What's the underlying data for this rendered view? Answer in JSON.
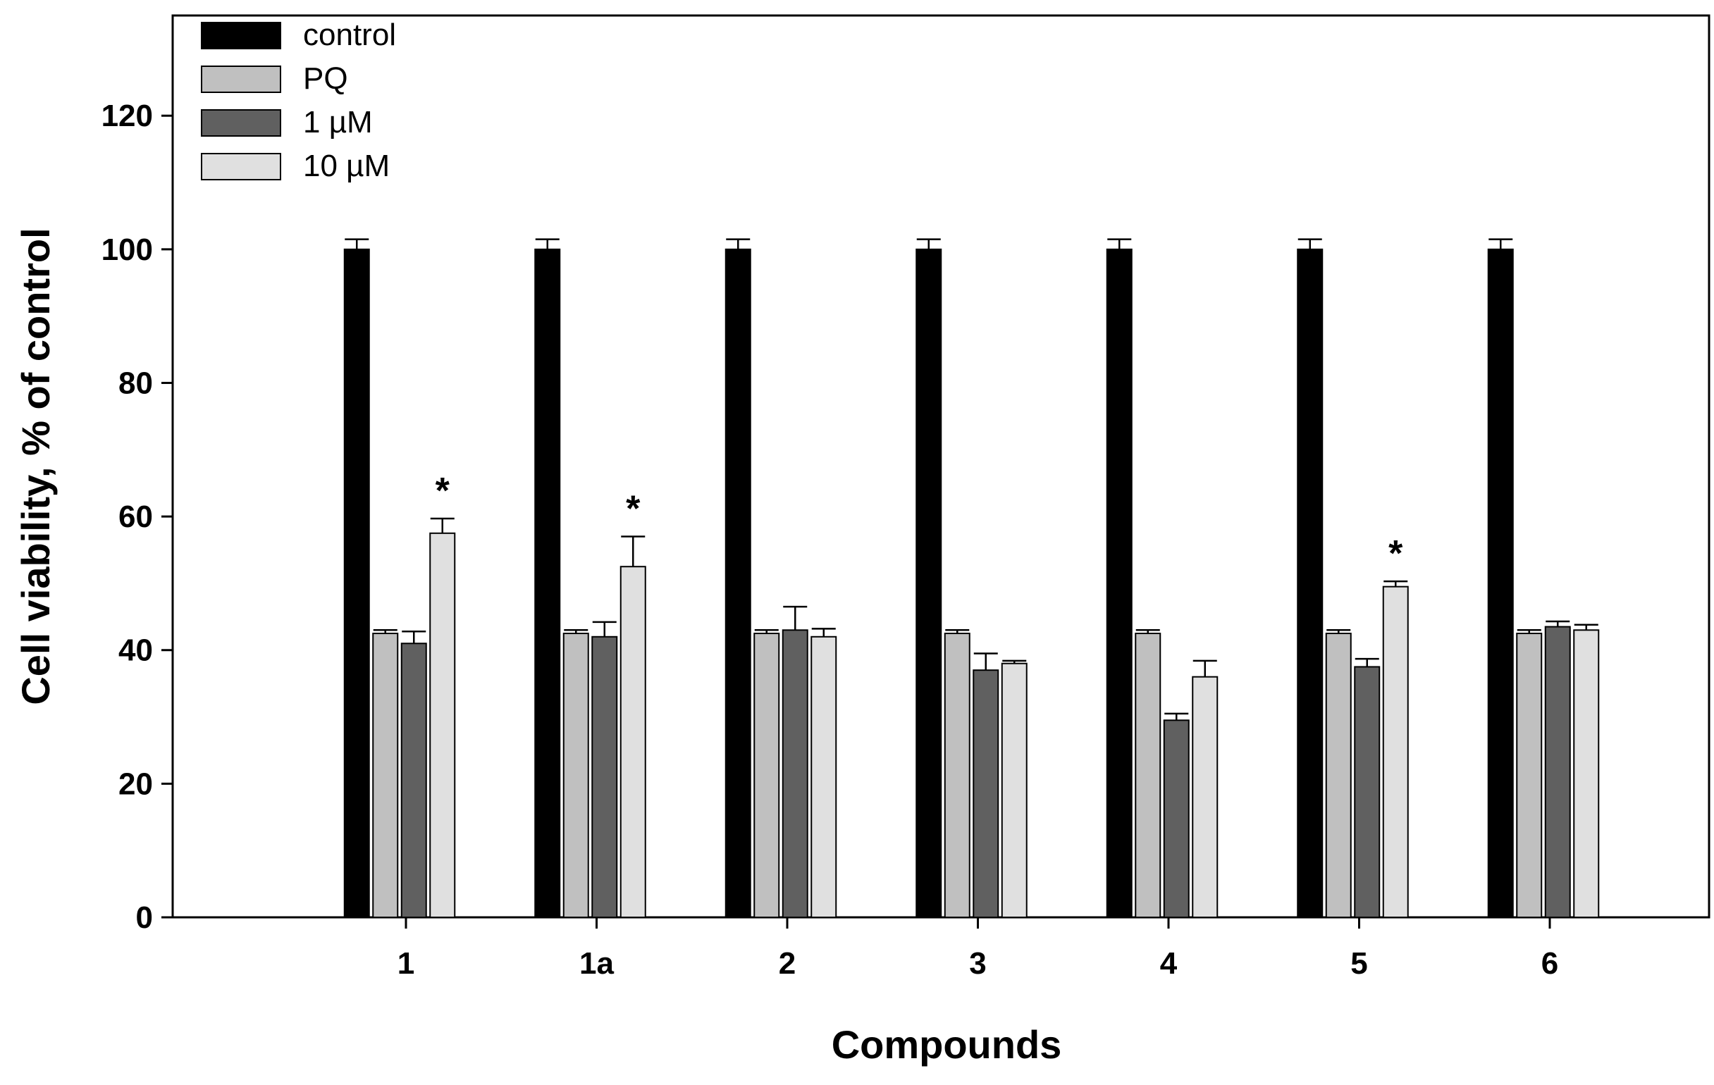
{
  "chart_data": {
    "type": "bar",
    "title": "",
    "xlabel": "Compounds",
    "ylabel": "Cell viability, % of control",
    "categories": [
      "1",
      "1a",
      "2",
      "3",
      "4",
      "5",
      "6"
    ],
    "ylim": [
      0,
      135
    ],
    "yticks": [
      0,
      20,
      40,
      60,
      80,
      100,
      120
    ],
    "legend_position": "top-left",
    "series": [
      {
        "name": "control",
        "color": "#000000",
        "values": [
          100,
          100,
          100,
          100,
          100,
          100,
          100
        ],
        "errors": [
          1.5,
          1.5,
          1.5,
          1.5,
          1.5,
          1.5,
          1.5
        ]
      },
      {
        "name": "PQ",
        "color": "#c0c0c0",
        "values": [
          42.5,
          42.5,
          42.5,
          42.5,
          42.5,
          42.5,
          42.5
        ],
        "errors": [
          0.5,
          0.5,
          0.5,
          0.5,
          0.5,
          0.5,
          0.5
        ]
      },
      {
        "name": "1 µM",
        "color": "#606060",
        "values": [
          41,
          42,
          43,
          37,
          29.5,
          37.5,
          43.5
        ],
        "errors": [
          1.8,
          2.2,
          3.5,
          2.5,
          1.0,
          1.2,
          0.8
        ]
      },
      {
        "name": "10 µM",
        "color": "#e0e0e0",
        "values": [
          57.5,
          52.5,
          42,
          38,
          36,
          49.5,
          43
        ],
        "errors": [
          2.2,
          4.5,
          1.2,
          0.4,
          2.4,
          0.8,
          0.8
        ]
      }
    ],
    "annotations": [
      {
        "category": "1",
        "series": "10 µM",
        "text": "*"
      },
      {
        "category": "1a",
        "series": "10 µM",
        "text": "*"
      },
      {
        "category": "5",
        "series": "10 µM",
        "text": "*"
      }
    ]
  }
}
